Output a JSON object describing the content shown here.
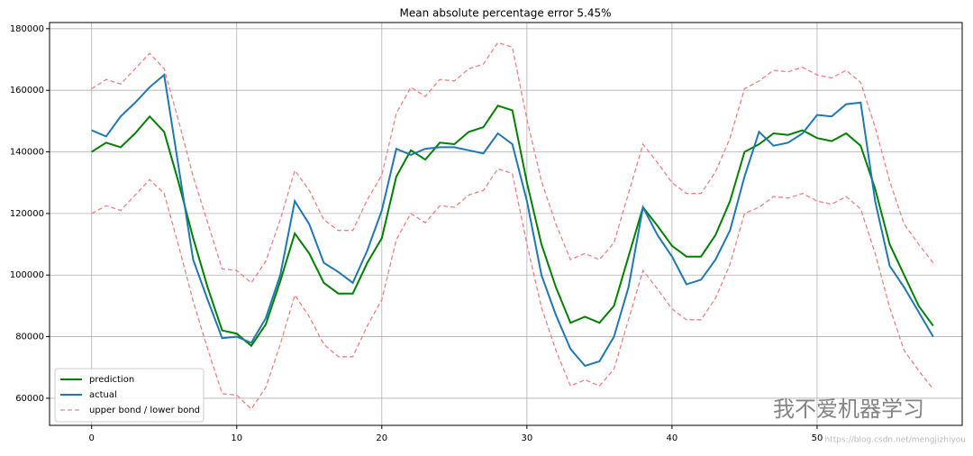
{
  "chart_data": {
    "type": "line",
    "title": "Mean absolute percentage error 5.45%",
    "x": [
      0,
      1,
      2,
      3,
      4,
      5,
      6,
      7,
      8,
      9,
      10,
      11,
      12,
      13,
      14,
      15,
      16,
      17,
      18,
      19,
      20,
      21,
      22,
      23,
      24,
      25,
      26,
      27,
      28,
      29,
      30,
      31,
      32,
      33,
      34,
      35,
      36,
      37,
      38,
      39,
      40,
      41,
      42,
      43,
      44,
      45,
      46,
      47,
      48,
      49,
      50,
      51,
      52,
      53,
      54,
      55,
      56,
      57,
      58
    ],
    "series": [
      {
        "name": "prediction",
        "color": "#008000",
        "dash": false,
        "values": [
          140000,
          143000,
          141500,
          146000,
          151500,
          146500,
          130000,
          112000,
          96000,
          82000,
          81000,
          77000,
          84000,
          98000,
          113500,
          107000,
          97500,
          94000,
          94000,
          104000,
          112000,
          132000,
          140500,
          137500,
          143000,
          142500,
          146500,
          148000,
          155000,
          153500,
          130000,
          110000,
          96000,
          84500,
          86500,
          84500,
          90000,
          106000,
          122000,
          116000,
          109500,
          106000,
          106000,
          113000,
          124000,
          140000,
          142500,
          146000,
          145500,
          147000,
          144500,
          143500,
          146000,
          142000,
          128000,
          110000,
          100000,
          90000,
          83500
        ]
      },
      {
        "name": "actual",
        "color": "#1f77b4",
        "dash": false,
        "values": [
          147000,
          145000,
          151500,
          156000,
          161000,
          165000,
          135000,
          105000,
          92000,
          79500,
          80000,
          78000,
          86000,
          100000,
          124000,
          116500,
          104000,
          101000,
          97500,
          108000,
          121000,
          141000,
          139000,
          141000,
          141500,
          141500,
          140500,
          139500,
          146000,
          142500,
          124000,
          100000,
          87000,
          76000,
          70500,
          72000,
          80000,
          96000,
          122000,
          113000,
          106000,
          97000,
          98500,
          105000,
          114500,
          132000,
          146500,
          142000,
          143000,
          146000,
          152000,
          151500,
          155500,
          156000,
          124000,
          103000,
          96000,
          88000,
          80000
        ]
      },
      {
        "name": "upper bond / lower bond",
        "color": "#f08080",
        "dash": true,
        "values": [
          160500,
          163500,
          162000,
          167000,
          172000,
          167000,
          150000,
          132000,
          117000,
          102000,
          101500,
          97500,
          104500,
          118000,
          134000,
          127500,
          118000,
          114500,
          114500,
          124500,
          132500,
          152500,
          161000,
          158000,
          163500,
          163000,
          167000,
          168500,
          175500,
          174000,
          150500,
          130500,
          116500,
          105000,
          107000,
          105000,
          110500,
          126500,
          142500,
          136500,
          130000,
          126500,
          126500,
          133500,
          144500,
          160500,
          163000,
          166500,
          166000,
          167500,
          165000,
          164000,
          166500,
          162500,
          148000,
          130500,
          116500,
          110000,
          104000
        ]
      },
      {
        "color": "#f08080",
        "dash": true,
        "values": [
          120000,
          122500,
          121000,
          126000,
          131000,
          126500,
          109500,
          91500,
          76000,
          61500,
          61000,
          56500,
          63500,
          77500,
          93500,
          86500,
          77500,
          73500,
          73500,
          83500,
          92000,
          111500,
          120000,
          117000,
          122500,
          122000,
          126000,
          127500,
          134500,
          133000,
          110000,
          89500,
          75500,
          64000,
          66000,
          64000,
          69500,
          85500,
          101500,
          95500,
          89000,
          85500,
          85500,
          92500,
          103500,
          120000,
          122000,
          125500,
          125000,
          126500,
          124000,
          123000,
          125500,
          121500,
          107000,
          89500,
          75500,
          69000,
          63000
        ]
      }
    ],
    "xlim": [
      -2.9,
      60
    ],
    "ylim": [
      51200,
      182000
    ],
    "xticks": [
      0,
      10,
      20,
      30,
      40,
      50
    ],
    "yticks": [
      60000,
      80000,
      100000,
      120000,
      140000,
      160000,
      180000
    ],
    "grid": true,
    "legend": "lower left",
    "annotations": [
      "我不爱机器学习",
      "https://blog.csdn.net/mengjizhiyou"
    ]
  }
}
